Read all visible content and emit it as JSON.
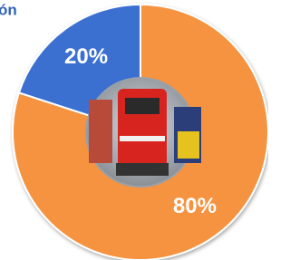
{
  "chart_data": {
    "type": "pie",
    "title": "ón",
    "categories": [
      null,
      null
    ],
    "values": [
      20,
      80
    ],
    "value_labels": [
      "20%",
      "80%"
    ],
    "colors": [
      "#3b6fd1",
      "#f5933f"
    ],
    "donut": true
  }
}
